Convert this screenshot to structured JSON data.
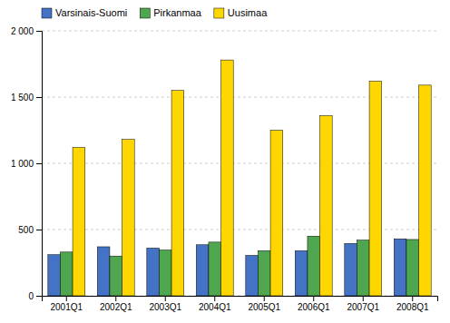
{
  "chart_data": {
    "type": "bar",
    "categories": [
      "2001Q1",
      "2002Q1",
      "2003Q1",
      "2004Q1",
      "2005Q1",
      "2006Q1",
      "2007Q1",
      "2008Q1"
    ],
    "series": [
      {
        "name": "Varsinais-Suomi",
        "color": "#4472C4",
        "values": [
          310,
          370,
          360,
          385,
          305,
          340,
          395,
          430
        ]
      },
      {
        "name": "Pirkanmaa",
        "color": "#4EA64E",
        "values": [
          330,
          300,
          345,
          405,
          340,
          450,
          420,
          425
        ]
      },
      {
        "name": "Uusimaa",
        "color": "#FFD700",
        "values": [
          1120,
          1180,
          1550,
          1780,
          1250,
          1360,
          1620,
          1590
        ]
      }
    ],
    "ylim": [
      0,
      2000
    ],
    "yticks": [
      0,
      500,
      {
        "value": 1000,
        "label": "1 000"
      },
      {
        "value": 1500,
        "label": "1 500"
      },
      {
        "value": 2000,
        "label": "2 000"
      }
    ],
    "grid": true,
    "legend": "upper left"
  }
}
